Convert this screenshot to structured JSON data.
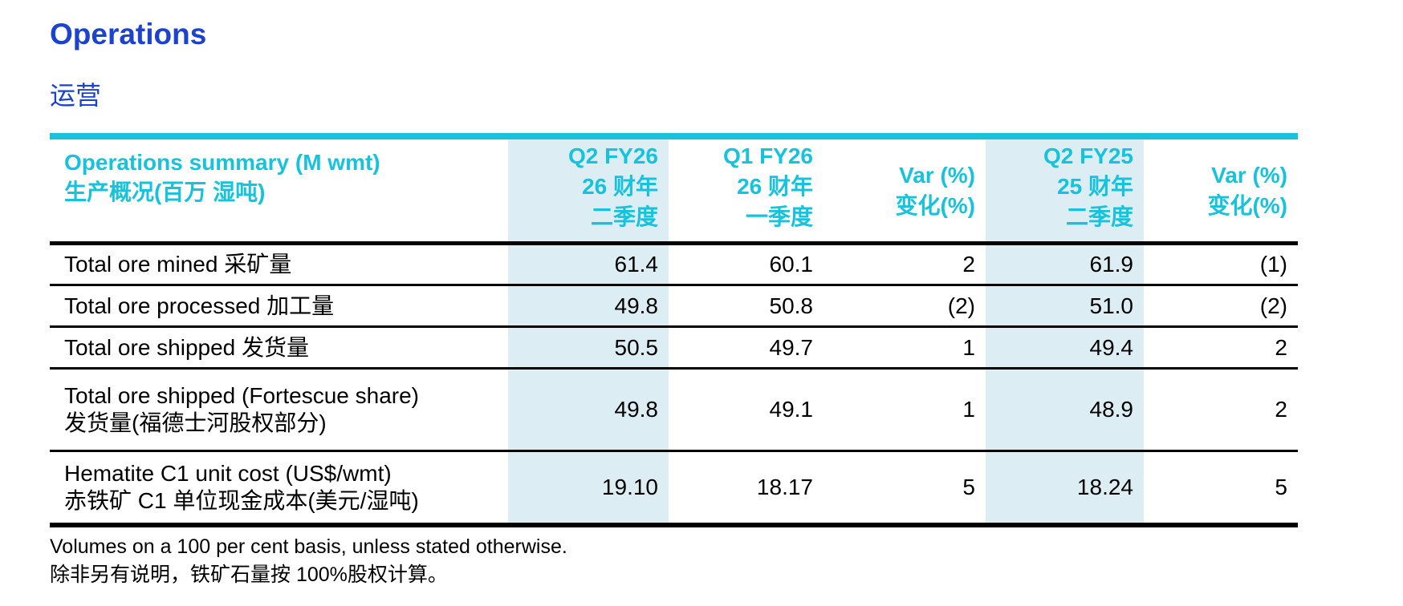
{
  "page": {
    "title_en": "Operations",
    "title_zh": "运营"
  },
  "colors": {
    "title_blue": "#1b43cf",
    "accent_cyan": "#17c3dc",
    "highlight_band": "#dcedf3",
    "text": "#000000"
  },
  "table": {
    "header": {
      "label_en": "Operations summary (M wmt)",
      "label_zh": "生产概况(百万 湿吨)",
      "columns": [
        {
          "lines": [
            "Q2 FY26",
            "26 财年",
            "二季度"
          ],
          "highlight": true
        },
        {
          "lines": [
            "Q1 FY26",
            "26 财年",
            "一季度"
          ],
          "highlight": false
        },
        {
          "lines": [
            "Var (%)",
            "变化(%)"
          ],
          "highlight": false
        },
        {
          "lines": [
            "Q2 FY25",
            "25 财年",
            "二季度"
          ],
          "highlight": true
        },
        {
          "lines": [
            "Var (%)",
            "变化(%)"
          ],
          "highlight": false
        }
      ]
    },
    "rows": [
      {
        "label_en": "Total ore mined",
        "label_zh": "采矿量",
        "values": [
          "61.4",
          "60.1",
          "2",
          "61.9",
          "(1)"
        ]
      },
      {
        "label_en": "Total ore processed",
        "label_zh": "加工量",
        "values": [
          "49.8",
          "50.8",
          "(2)",
          "51.0",
          "(2)"
        ]
      },
      {
        "label_en": "Total ore shipped",
        "label_zh": "发货量",
        "values": [
          "50.5",
          "49.7",
          "1",
          "49.4",
          "2"
        ]
      },
      {
        "label_en": "Total ore shipped (Fortescue share)",
        "label_zh": "发货量(福德士河股权部分)",
        "values": [
          "49.8",
          "49.1",
          "1",
          "48.9",
          "2"
        ]
      },
      {
        "label_en": "Hematite C1 unit cost (US$/wmt)",
        "label_zh": "赤铁矿 C1 单位现金成本(美元/湿吨)",
        "values": [
          "19.10",
          "18.17",
          "5",
          "18.24",
          "5"
        ]
      }
    ],
    "footnotes": [
      "Volumes on a 100 per cent basis, unless stated otherwise.",
      "除非另有说明，铁矿石量按 100%股权计算。"
    ]
  }
}
